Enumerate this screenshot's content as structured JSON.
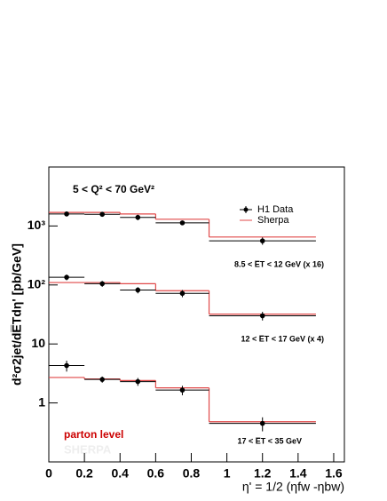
{
  "chart_data": {
    "type": "steperror",
    "title": "5 < Q² < 70 GeV²",
    "x_label": "η' = 1/2 (ηfw -ηbw)",
    "y_label": "d²σ2jet/dE̅Tdη' [pb/GeV]",
    "annotations": [
      "parton level",
      "SHERPA"
    ],
    "x": [
      0.1,
      0.3,
      0.5,
      0.75,
      1.2
    ],
    "bins": [
      0,
      0.2,
      0.4,
      0.6,
      0.9,
      1.5
    ],
    "group_labels": [
      "8.5 < E̅T < 12 GeV (x 16)",
      "12 < E̅T < 17 GeV (x 4)",
      "17 < E̅T < 35 GeV"
    ],
    "series": [
      {
        "name": "H1 Data",
        "color": "#000000",
        "groups": [
          {
            "values": [
              1600,
              1580,
              1400,
              1130,
              560
            ],
            "errors": [
              150,
              150,
              150,
              100,
              80
            ]
          },
          {
            "values": [
              135,
              105,
              82,
              72,
              30
            ],
            "errors": [
              15,
              12,
              10,
              10,
              5
            ]
          },
          {
            "values": [
              4.3,
              2.5,
              2.3,
              1.65,
              0.45
            ],
            "errors": [
              0.9,
              0.3,
              0.35,
              0.3,
              0.12
            ]
          }
        ]
      },
      {
        "name": "Sherpa",
        "color": "#e04848",
        "groups": [
          {
            "values": [
              1700,
              1700,
              1600,
              1300,
              650
            ]
          },
          {
            "values": [
              110,
              110,
              105,
              80,
              32
            ]
          },
          {
            "values": [
              2.7,
              2.55,
              2.4,
              1.8,
              0.48
            ]
          }
        ]
      }
    ],
    "xlim": [
      0,
      1.66
    ],
    "ylim": [
      0.1,
      10000
    ],
    "log_y": true,
    "xticks": [
      0,
      0.2,
      0.4,
      0.6,
      0.8,
      1,
      1.2,
      1.4,
      1.6
    ],
    "yticks": [
      1,
      10,
      {
        "value": 100,
        "label": "10²"
      },
      {
        "value": 1000,
        "label": "10³"
      }
    ]
  }
}
